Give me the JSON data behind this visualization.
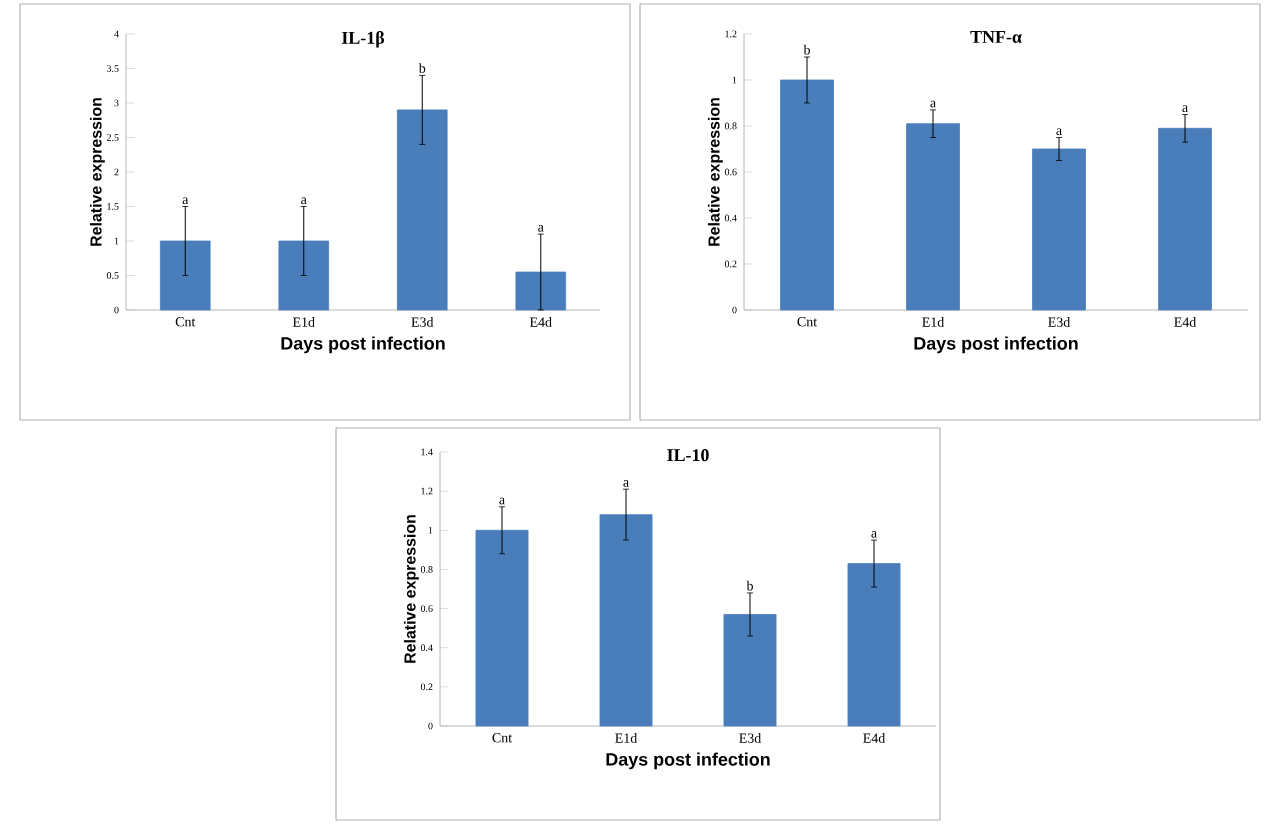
{
  "chart_data": [
    {
      "type": "bar",
      "title": "IL-1β",
      "xlabel": "Days post infection",
      "ylabel": "Relative expression",
      "categories": [
        "Cnt",
        "E1d",
        "E3d",
        "E4d"
      ],
      "values": [
        1.0,
        1.0,
        2.9,
        0.55
      ],
      "errors": [
        0.5,
        0.5,
        0.5,
        0.55
      ],
      "color": "#4a7ebb",
      "ylim": [
        0,
        4
      ],
      "yticks": [
        0,
        0.5,
        1,
        1.5,
        2,
        2.5,
        3,
        3.5,
        4
      ],
      "annotations": [
        {
          "text": "a",
          "x": "Cnt",
          "y": 1.5
        },
        {
          "text": "a",
          "x": "E1d",
          "y": 1.5
        },
        {
          "text": "b",
          "x": "E3d",
          "y": 3.4
        },
        {
          "text": "a",
          "x": "E4d",
          "y": 1.1
        }
      ]
    },
    {
      "type": "bar",
      "title": "TNF-α",
      "xlabel": "Days post infection",
      "ylabel": "Relative expression",
      "categories": [
        "Cnt",
        "E1d",
        "E3d",
        "E4d"
      ],
      "values": [
        1.0,
        0.81,
        0.7,
        0.79
      ],
      "errors": [
        0.1,
        0.06,
        0.05,
        0.06
      ],
      "color": "#4a7ebb",
      "ylim": [
        0,
        1.2
      ],
      "yticks": [
        0,
        0.2,
        0.4,
        0.6,
        0.8,
        1,
        1.2
      ],
      "annotations": [
        {
          "text": "b",
          "x": "Cnt",
          "y": 1.1
        },
        {
          "text": "a",
          "x": "E1d",
          "y": 0.87
        },
        {
          "text": "a",
          "x": "E3d",
          "y": 0.75
        },
        {
          "text": "a",
          "x": "E4d",
          "y": 0.85
        }
      ]
    },
    {
      "type": "bar",
      "title": "IL-10",
      "xlabel": "Days post infection",
      "ylabel": "Relative expression",
      "categories": [
        "Cnt",
        "E1d",
        "E3d",
        "E4d"
      ],
      "values": [
        1.0,
        1.08,
        0.57,
        0.83
      ],
      "errors": [
        0.12,
        0.13,
        0.11,
        0.12
      ],
      "color": "#4a7ebb",
      "ylim": [
        0,
        1.4
      ],
      "yticks": [
        0,
        0.2,
        0.4,
        0.6,
        0.8,
        1,
        1.2,
        1.4
      ],
      "annotations": [
        {
          "text": "a",
          "x": "Cnt",
          "y": 1.12
        },
        {
          "text": "a",
          "x": "E1d",
          "y": 1.21
        },
        {
          "text": "b",
          "x": "E3d",
          "y": 0.68
        },
        {
          "text": "a",
          "x": "E4d",
          "y": 0.95
        }
      ]
    }
  ]
}
